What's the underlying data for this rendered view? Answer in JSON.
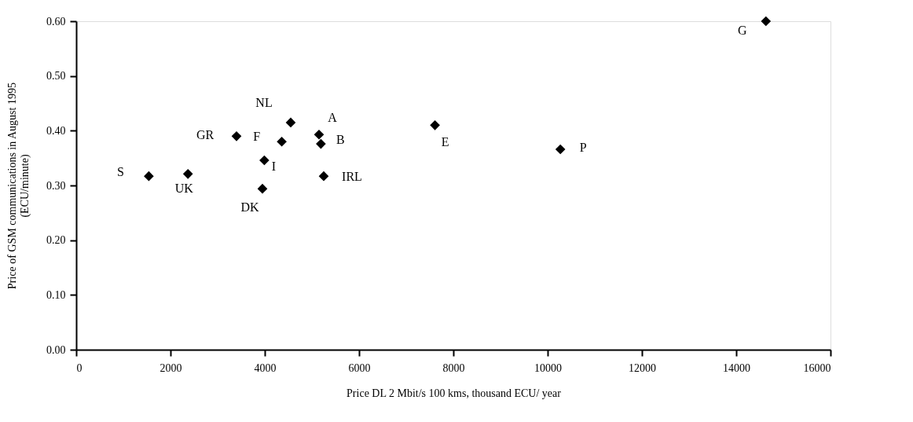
{
  "chart_data": {
    "type": "scatter",
    "xlabel": "Price DL 2 Mbit/s 100 kms, thousand ECU/ year",
    "ylabel": "Price of GSM communications in August 1995\n(ECU/minute)",
    "x": [
      1540,
      2370,
      3400,
      4360,
      4550,
      3990,
      3950,
      5150,
      5190,
      5250,
      7610,
      10270,
      14630
    ],
    "series": [
      {
        "color": "#000000",
        "values": [
          0.317,
          0.321,
          0.39,
          0.38,
          0.415,
          0.346,
          0.294,
          0.393,
          0.376,
          0.317,
          0.41,
          0.366,
          0.6
        ]
      }
    ],
    "marker": "diamond",
    "xlim": [
      0,
      16000
    ],
    "xticks": [
      0,
      2000,
      4000,
      6000,
      8000,
      10000,
      12000,
      14000,
      16000
    ],
    "ylim": [
      0,
      0.6
    ],
    "yticks": [
      {
        "value": 0,
        "label": "0.00"
      },
      {
        "value": 0.1,
        "label": "0.10"
      },
      {
        "value": 0.2,
        "label": "0.20"
      },
      {
        "value": 0.3,
        "label": "0.30"
      },
      {
        "value": 0.4,
        "label": "0.40"
      },
      {
        "value": 0.5,
        "label": "0.50"
      },
      {
        "value": 0.6,
        "label": "0.60"
      }
    ],
    "grid": false,
    "annotations": [
      {
        "text": "S",
        "x": 1540,
        "y": 0.317
      },
      {
        "text": "UK",
        "x": 2370,
        "y": 0.321
      },
      {
        "text": "GR",
        "x": 3400,
        "y": 0.39
      },
      {
        "text": "F",
        "x": 4360,
        "y": 0.38
      },
      {
        "text": "NL",
        "x": 4550,
        "y": 0.415
      },
      {
        "text": "I",
        "x": 3990,
        "y": 0.346
      },
      {
        "text": "DK",
        "x": 3950,
        "y": 0.294
      },
      {
        "text": "A",
        "x": 5150,
        "y": 0.393
      },
      {
        "text": "B",
        "x": 5190,
        "y": 0.376
      },
      {
        "text": "IRL",
        "x": 5250,
        "y": 0.317
      },
      {
        "text": "E",
        "x": 7610,
        "y": 0.41
      },
      {
        "text": "P",
        "x": 10270,
        "y": 0.366
      },
      {
        "text": "G",
        "x": 14630,
        "y": 0.6
      }
    ]
  }
}
